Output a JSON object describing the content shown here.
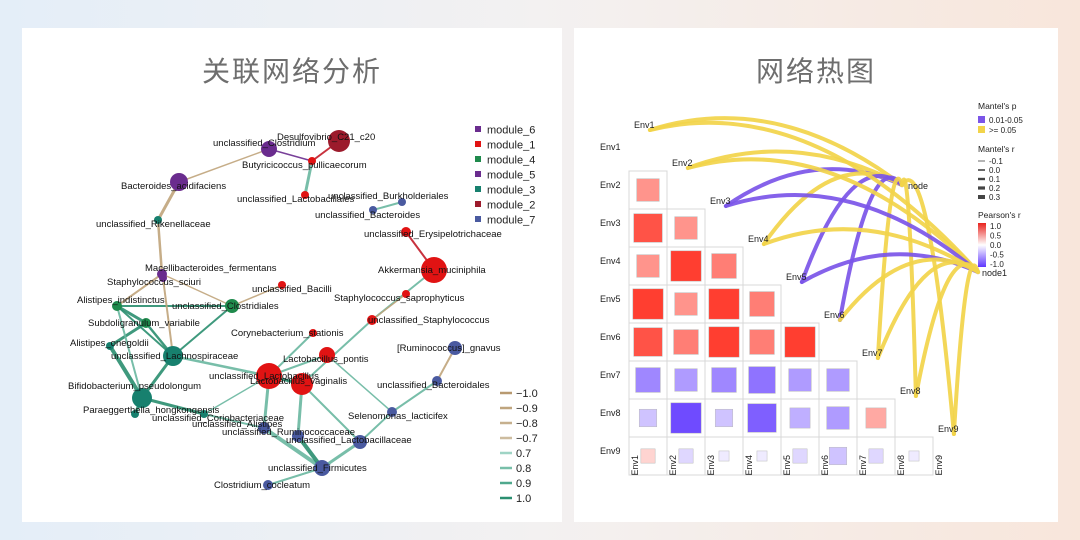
{
  "left": {
    "title": "关联网络分析",
    "legend_modules": [
      {
        "name": "module_6",
        "color": "#6a2c8e"
      },
      {
        "name": "module_1",
        "color": "#e11313"
      },
      {
        "name": "module_4",
        "color": "#1f8a4c"
      },
      {
        "name": "module_5",
        "color": "#6a2c8e"
      },
      {
        "name": "module_3",
        "color": "#17806e"
      },
      {
        "name": "module_2",
        "color": "#9c1b2c"
      },
      {
        "name": "module_7",
        "color": "#4a5aa0"
      }
    ],
    "legend_edges": [
      {
        "label": "−1.0",
        "color": "#b89a70"
      },
      {
        "label": "−0.9",
        "color": "#bfa57e"
      },
      {
        "label": "−0.8",
        "color": "#c6b08e"
      },
      {
        "label": "−0.7",
        "color": "#cdbc9f"
      },
      {
        "label": "0.7",
        "color": "#9fd4c5"
      },
      {
        "label": "0.8",
        "color": "#78bfa9"
      },
      {
        "label": "0.9",
        "color": "#4fa88d"
      },
      {
        "label": "1.0",
        "color": "#2b8f70"
      }
    ]
  },
  "right": {
    "title": "网络热图",
    "mantel_p_title": "Mantel's p",
    "mantel_p_items": [
      {
        "label": "0.01-0.05",
        "color": "#7b55e8"
      },
      {
        "label": ">= 0.05",
        "color": "#f2d44a"
      }
    ],
    "mantel_r_title": "Mantel's r",
    "mantel_r_items": [
      "-0.1",
      "0.0",
      "0.1",
      "0.2",
      "0.3"
    ],
    "pearson_title": "Pearson's r",
    "pearson_ticks": [
      "1.0",
      "0.5",
      "0.0",
      "-0.5",
      "-1.0"
    ],
    "node_labels": [
      "node",
      "node1"
    ]
  },
  "chart_data": [
    {
      "type": "network",
      "title": "关联网络分析",
      "nodes": [
        {
          "label": "unclassified_Clostridium",
          "module": "module_6"
        },
        {
          "label": "Desulfovibrio_C21_c20",
          "module": "module_2"
        },
        {
          "label": "Butyricicoccus_pullicaecorum",
          "module": "module_1"
        },
        {
          "label": "Bacteroides_acidifaciens",
          "module": "module_6"
        },
        {
          "label": "unclassified_Burkholderiales",
          "module": "module_7"
        },
        {
          "label": "unclassified_Lactobacillales",
          "module": "module_1"
        },
        {
          "label": "unclassified_Bacteroides",
          "module": "module_7"
        },
        {
          "label": "unclassified_Rikenellaceae",
          "module": "module_3"
        },
        {
          "label": "unclassified_Erysipelotrichaceae",
          "module": "module_1"
        },
        {
          "label": "Macellibacteroides_fermentans",
          "module": "module_5"
        },
        {
          "label": "Akkermansia_muciniphila",
          "module": "module_1"
        },
        {
          "label": "Staphylococcus_sciuri",
          "module": "module_5"
        },
        {
          "label": "Alistipes_indistinctus",
          "module": "module_4"
        },
        {
          "label": "unclassified_Clostridiales",
          "module": "module_4"
        },
        {
          "label": "unclassified_Bacilli",
          "module": "module_1"
        },
        {
          "label": "Staphylococcus_saprophyticus",
          "module": "module_1"
        },
        {
          "label": "Subdoligranulum_variabile",
          "module": "module_4"
        },
        {
          "label": "unclassified_Staphylococcus",
          "module": "module_1"
        },
        {
          "label": "Corynebacterium_stationis",
          "module": "module_1"
        },
        {
          "label": "Alistipes_onegoldii",
          "module": "module_3"
        },
        {
          "label": "unclassified_Lachnospiraceae",
          "module": "module_3"
        },
        {
          "label": "[Ruminococcus]_gnavus",
          "module": "module_7"
        },
        {
          "label": "Lactobacillus_pontis",
          "module": "module_1"
        },
        {
          "label": "unclassified_Lactobacillus",
          "module": "module_1"
        },
        {
          "label": "Lactobacillus_vaginalis",
          "module": "module_1"
        },
        {
          "label": "Bifidobacterium_pseudolongum",
          "module": "module_3"
        },
        {
          "label": "unclassified_Bacteroidales",
          "module": "module_7"
        },
        {
          "label": "Paraeggerthella_hongkongensis",
          "module": "module_3"
        },
        {
          "label": "unclassified_Coriobacteriaceae",
          "module": "module_3"
        },
        {
          "label": "Selenomonas_lacticifex",
          "module": "module_7"
        },
        {
          "label": "unclassified_Alistipes",
          "module": "module_7"
        },
        {
          "label": "unclassified_Ruminococcaceae",
          "module": "module_7"
        },
        {
          "label": "unclassified_Lactobacillaceae",
          "module": "module_7"
        },
        {
          "label": "unclassified_Firmicutes",
          "module": "module_7"
        },
        {
          "label": "Clostridium_cocleatum",
          "module": "module_7"
        }
      ],
      "edge_weight_scale": [
        -1.0,
        -0.9,
        -0.8,
        -0.7,
        0.7,
        0.8,
        0.9,
        1.0
      ]
    },
    {
      "type": "heatmap",
      "title": "网络热图",
      "categories": [
        "Env1",
        "Env2",
        "Env3",
        "Env4",
        "Env5",
        "Env6",
        "Env7",
        "Env8",
        "Env9"
      ],
      "pearson_r_lower_triangle": [
        [
          0.5
        ],
        [
          0.8,
          0.5
        ],
        [
          0.5,
          0.9,
          0.6
        ],
        [
          0.9,
          0.5,
          0.9,
          0.6
        ],
        [
          0.8,
          0.6,
          0.9,
          0.6,
          0.9
        ],
        [
          -0.6,
          -0.5,
          -0.6,
          -0.7,
          -0.5,
          -0.5
        ],
        [
          -0.3,
          -0.9,
          -0.3,
          -0.8,
          -0.4,
          -0.5,
          0.4
        ],
        [
          0.2,
          -0.2,
          -0.1,
          -0.1,
          -0.2,
          -0.3,
          -0.2,
          -0.1
        ]
      ],
      "mantel_links": [
        {
          "from": "node",
          "to": "Env1",
          "p": ">= 0.05"
        },
        {
          "from": "node",
          "to": "Env2",
          "p": ">= 0.05"
        },
        {
          "from": "node",
          "to": "Env3",
          "p": "0.01-0.05"
        },
        {
          "from": "node",
          "to": "Env4",
          "p": ">= 0.05"
        },
        {
          "from": "node",
          "to": "Env5",
          "p": "0.01-0.05"
        },
        {
          "from": "node",
          "to": "Env6",
          "p": "0.01-0.05"
        },
        {
          "from": "node",
          "to": "Env7",
          "p": ">= 0.05"
        },
        {
          "from": "node",
          "to": "Env8",
          "p": ">= 0.05"
        },
        {
          "from": "node",
          "to": "Env9",
          "p": ">= 0.05"
        },
        {
          "from": "node1",
          "to": "Env1",
          "p": ">= 0.05"
        },
        {
          "from": "node1",
          "to": "Env2",
          "p": ">= 0.05"
        },
        {
          "from": "node1",
          "to": "Env3",
          "p": "0.01-0.05"
        },
        {
          "from": "node1",
          "to": "Env4",
          "p": ">= 0.05"
        },
        {
          "from": "node1",
          "to": "Env5",
          "p": "0.01-0.05"
        },
        {
          "from": "node1",
          "to": "Env6",
          "p": ">= 0.05"
        },
        {
          "from": "node1",
          "to": "Env7",
          "p": ">= 0.05"
        },
        {
          "from": "node1",
          "to": "Env8",
          "p": ">= 0.05"
        },
        {
          "from": "node1",
          "to": "Env9",
          "p": ">= 0.05"
        }
      ]
    }
  ]
}
